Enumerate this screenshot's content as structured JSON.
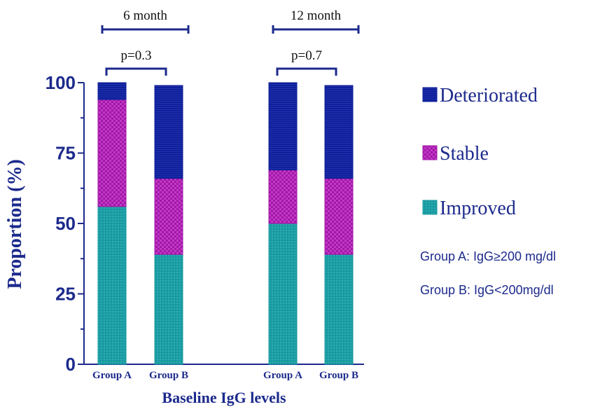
{
  "chart_data": {
    "type": "bar",
    "stacked": true,
    "ylabel": "Proportion (%)",
    "xlabel": "Baseline IgG levels",
    "ylim": [
      0,
      100
    ],
    "yticks": [
      "0",
      "25",
      "50",
      "75",
      "100"
    ],
    "legend_position": "right",
    "timepoints": [
      {
        "label": "6 month",
        "p_label": "p=0.3"
      },
      {
        "label": "12 month",
        "p_label": "p=0.7"
      }
    ],
    "categories": [
      "Group A",
      "Group B",
      "Group A",
      "Group B"
    ],
    "series": [
      {
        "name": "Improved",
        "color": "#1a9aa0",
        "values": [
          56,
          39,
          50,
          39
        ]
      },
      {
        "name": "Stable",
        "color": "#a316a8",
        "values": [
          38,
          27,
          19,
          27
        ]
      },
      {
        "name": "Deteriorated",
        "color": "#0f1f99",
        "values": [
          6,
          33,
          31,
          33
        ]
      }
    ],
    "legend_order": [
      "Deteriorated",
      "Stable",
      "Improved"
    ],
    "notes": [
      "Group A: IgG≥200 mg/dl",
      "Group B: IgG<200mg/dl"
    ],
    "axis_color": "#1c2a8c"
  }
}
